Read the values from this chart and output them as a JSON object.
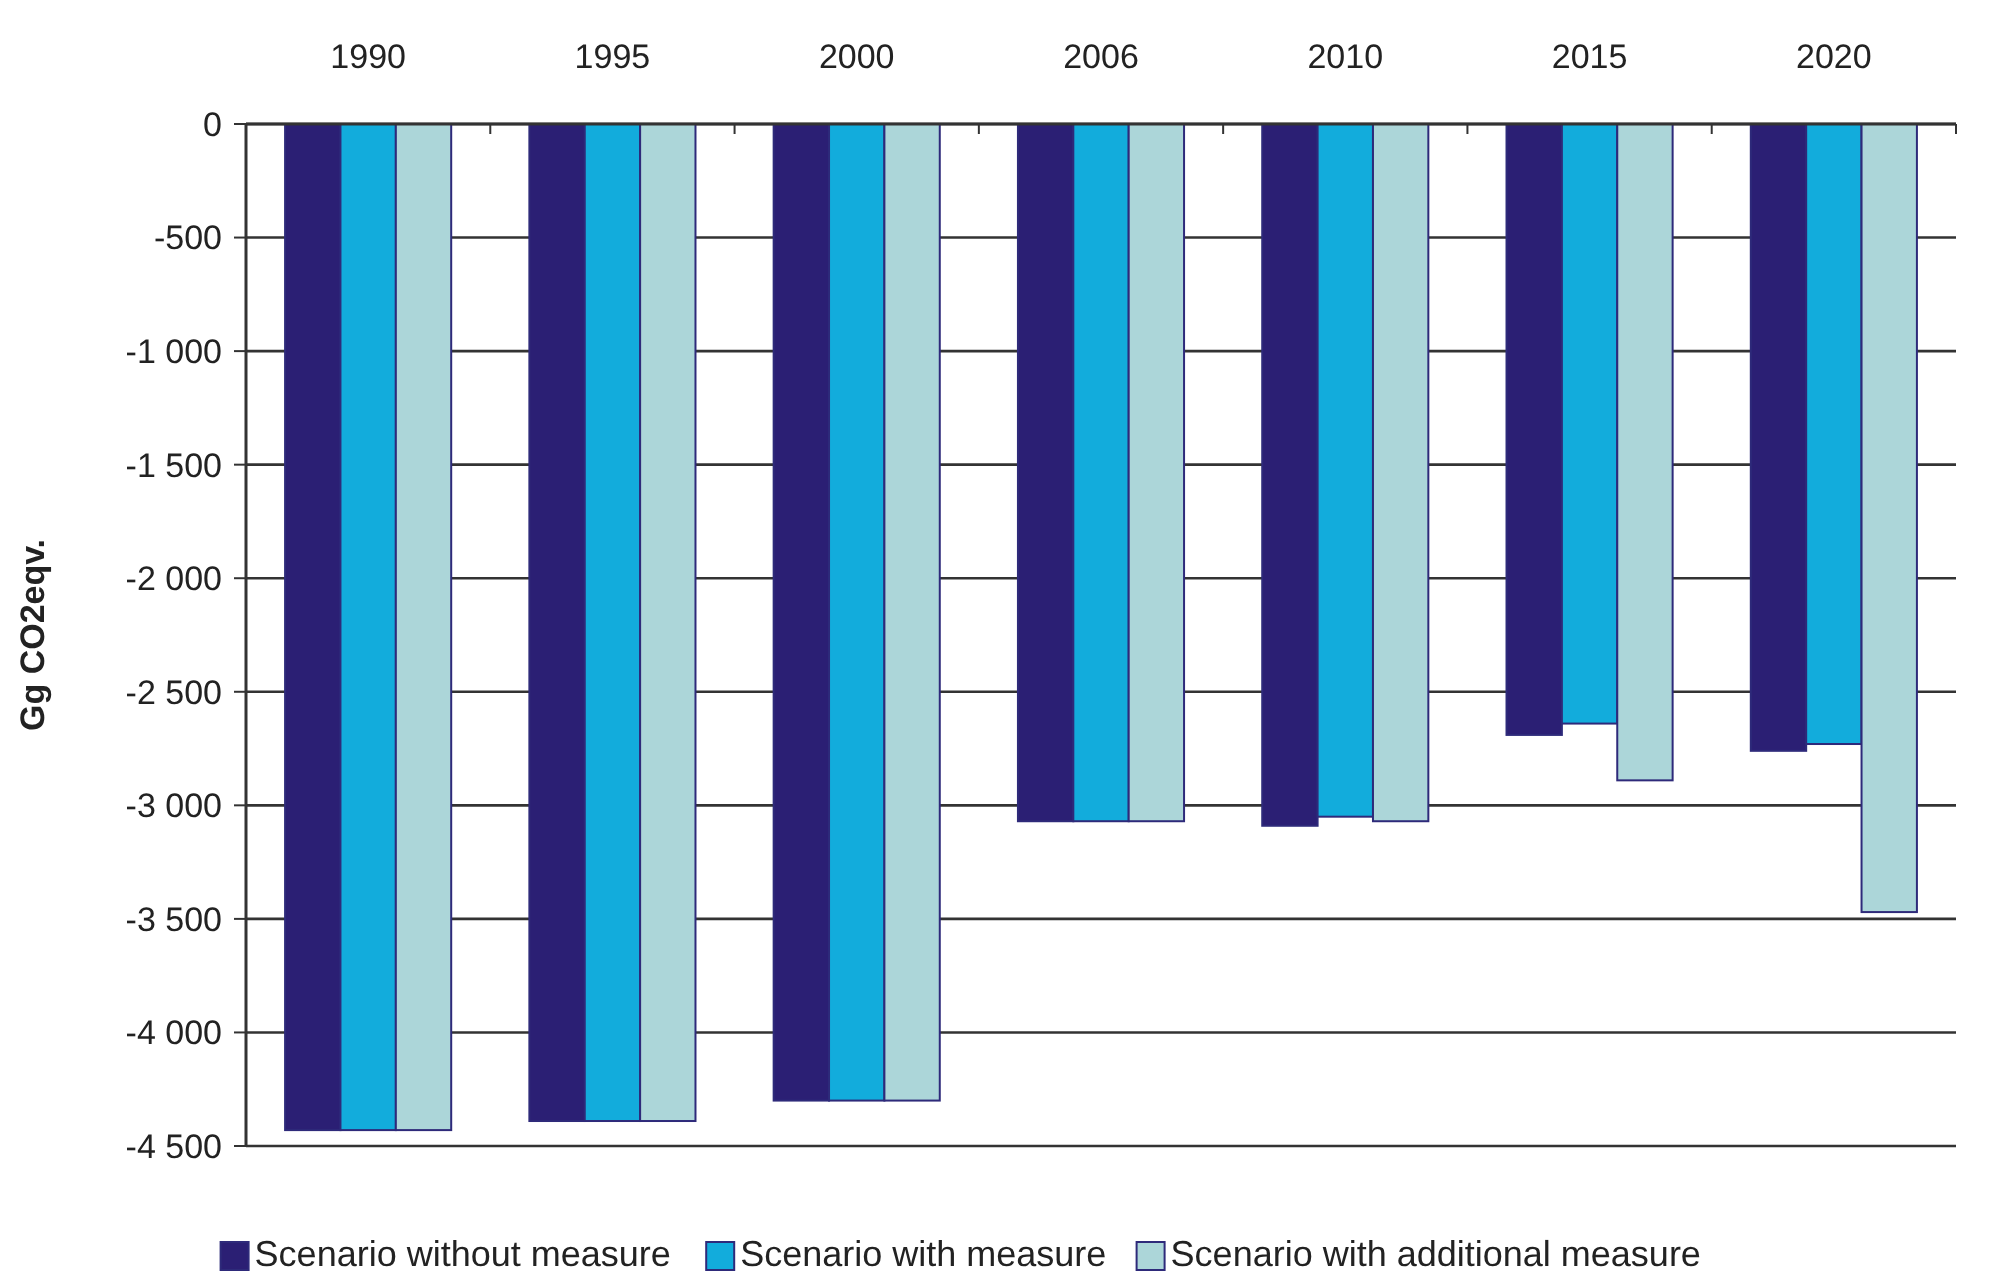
{
  "chart_data": {
    "type": "bar",
    "ylabel": "Gg CO2eqv.",
    "categories": [
      "1990",
      "1995",
      "2000",
      "2006",
      "2010",
      "2015",
      "2020"
    ],
    "series": [
      {
        "name": "Scenario without measure",
        "color": "#2b1f74",
        "values": [
          -4430,
          -4390,
          -4300,
          -3070,
          -3090,
          -2690,
          -2760
        ]
      },
      {
        "name": "Scenario with measure",
        "color": "#12acdc",
        "values": [
          -4430,
          -4390,
          -4300,
          -3070,
          -3050,
          -2640,
          -2730
        ]
      },
      {
        "name": "Scenario with additional measure",
        "color": "#acd6d9",
        "values": [
          -4430,
          -4390,
          -4300,
          -3070,
          -3070,
          -2890,
          -3470
        ]
      }
    ],
    "ylim": [
      -4500,
      0
    ],
    "yticks": [
      {
        "value": 0,
        "label": "0"
      },
      {
        "value": -500,
        "label": "-500"
      },
      {
        "value": -1000,
        "label": "-1 000"
      },
      {
        "value": -1500,
        "label": "-1 500"
      },
      {
        "value": -2000,
        "label": "-2 000"
      },
      {
        "value": -2500,
        "label": "-2 500"
      },
      {
        "value": -3000,
        "label": "-3 000"
      },
      {
        "value": -3500,
        "label": "-3 500"
      },
      {
        "value": -4000,
        "label": "-4 000"
      },
      {
        "value": -4500,
        "label": "-4 500"
      }
    ],
    "grid": "y",
    "legend": "bottom"
  }
}
